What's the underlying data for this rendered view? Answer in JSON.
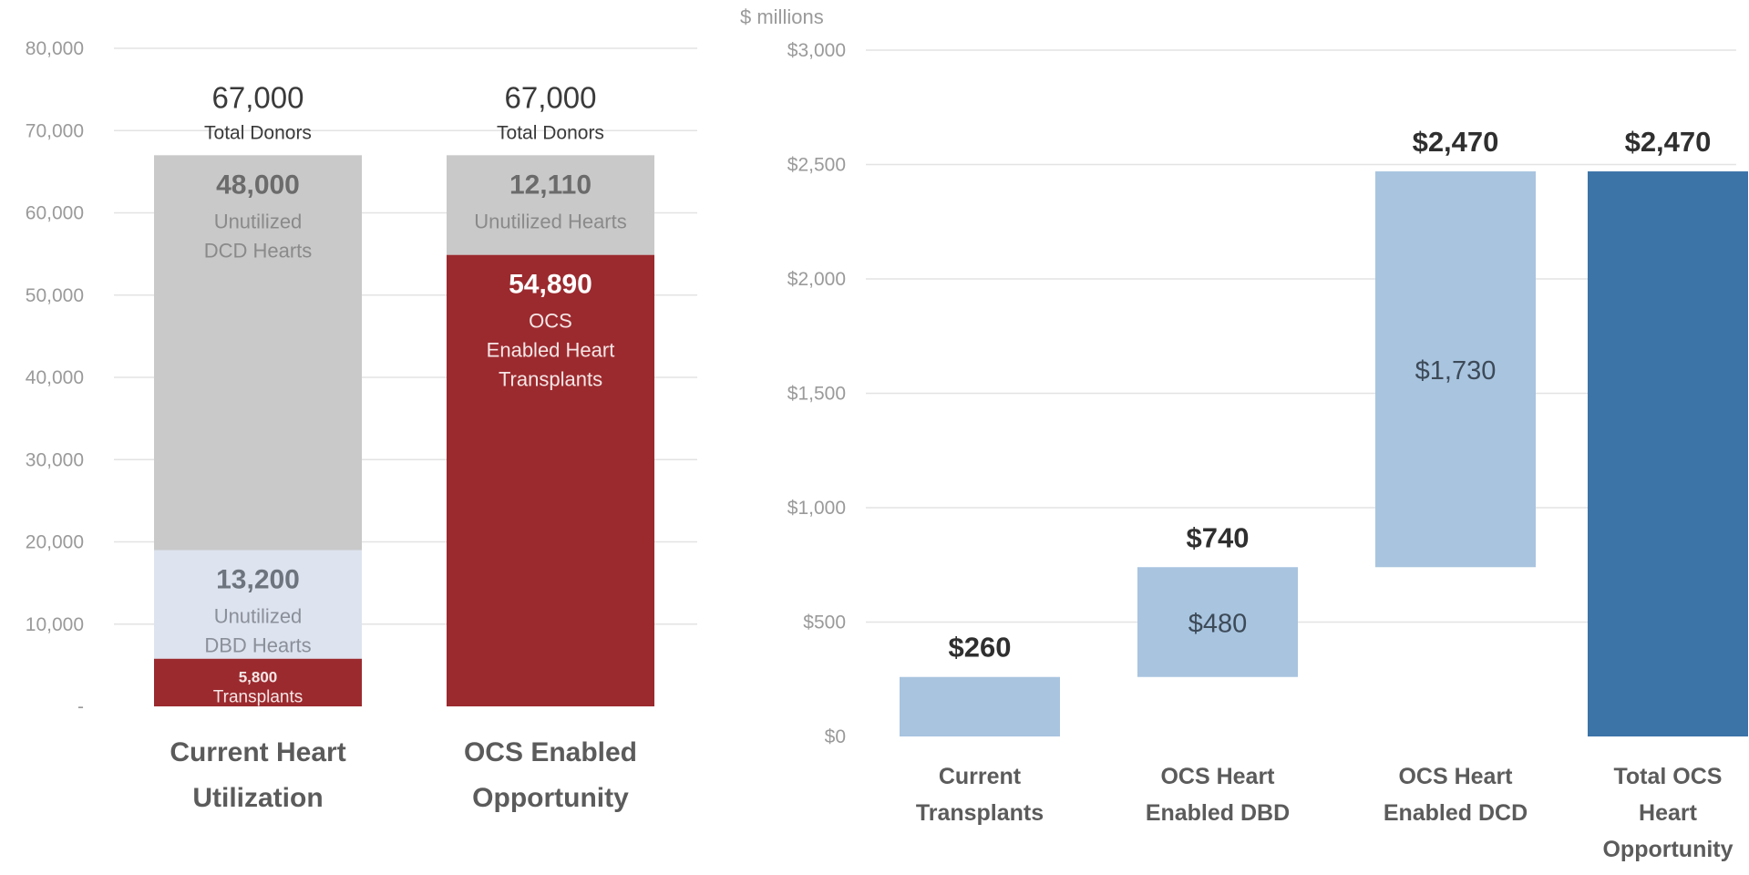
{
  "chart_data": [
    {
      "type": "bar",
      "stacked": true,
      "ylim": [
        0,
        80000
      ],
      "yticks": [
        {
          "value": 0,
          "label": "-"
        },
        {
          "value": 10000,
          "label": "10,000"
        },
        {
          "value": 20000,
          "label": "20,000"
        },
        {
          "value": 30000,
          "label": "30,000"
        },
        {
          "value": 40000,
          "label": "40,000"
        },
        {
          "value": 50000,
          "label": "50,000"
        },
        {
          "value": 60000,
          "label": "60,000"
        },
        {
          "value": 70000,
          "label": "70,000"
        },
        {
          "value": 80000,
          "label": "80,000"
        }
      ],
      "grid": true,
      "categories": [
        {
          "line1": "Current Heart",
          "line2": "Utilization"
        },
        {
          "line1": "OCS Enabled",
          "line2": "Opportunity"
        }
      ],
      "totals": [
        {
          "value_label": "67,000",
          "caption": "Total Donors"
        },
        {
          "value_label": "67,000",
          "caption": "Total Donors"
        }
      ],
      "bars": [
        [
          {
            "value": 5800,
            "color": "#9b2a2e",
            "value_label": "5,800",
            "lines": [
              "Transplants"
            ],
            "text_color": "#f6e6e6",
            "style": "tiny"
          },
          {
            "value": 13200,
            "color": "#dde3ef",
            "value_label": "13,200",
            "lines": [
              "Unutilized",
              "DBD Hearts"
            ],
            "text_color": "#8a8f99",
            "value_color": "#6e747d",
            "style": "normal"
          },
          {
            "value": 48000,
            "color": "#c9c9c9",
            "value_label": "48,000",
            "lines": [
              "Unutilized",
              "DCD Hearts"
            ],
            "text_color": "#8a8a8a",
            "value_color": "#6b6b6b",
            "style": "normal"
          }
        ],
        [
          {
            "value": 54890,
            "color": "#9b2a2e",
            "value_label": "54,890",
            "lines": [
              "OCS",
              "Enabled Heart",
              "Transplants"
            ],
            "text_color": "#f6e6e6",
            "value_color": "#ffffff",
            "style": "normal"
          },
          {
            "value": 12110,
            "color": "#c9c9c9",
            "value_label": "12,110",
            "lines": [
              "Unutilized Hearts"
            ],
            "text_color": "#8a8a8a",
            "value_color": "#6b6b6b",
            "style": "normal"
          }
        ]
      ]
    },
    {
      "type": "bar",
      "subtype": "waterfall",
      "unit_label": "$ millions",
      "ylim": [
        0,
        3000
      ],
      "yticks": [
        {
          "value": 0,
          "label": "$0"
        },
        {
          "value": 500,
          "label": "$500"
        },
        {
          "value": 1000,
          "label": "$1,000"
        },
        {
          "value": 1500,
          "label": "$1,500"
        },
        {
          "value": 2000,
          "label": "$2,000"
        },
        {
          "value": 2500,
          "label": "$2,500"
        },
        {
          "value": 3000,
          "label": "$3,000"
        }
      ],
      "grid": true,
      "categories": [
        [
          "Current",
          "Transplants"
        ],
        [
          "OCS Heart",
          "Enabled DBD"
        ],
        [
          "OCS Heart",
          "Enabled DCD"
        ],
        [
          "Total OCS",
          "Heart",
          "Opportunity"
        ]
      ],
      "bars": [
        {
          "start": 0,
          "end": 260,
          "color": "#a8c4df",
          "top_label": "$260",
          "inner_label": ""
        },
        {
          "start": 260,
          "end": 740,
          "color": "#a8c4df",
          "top_label": "$740",
          "inner_label": "$480"
        },
        {
          "start": 740,
          "end": 2470,
          "color": "#a8c4df",
          "top_label": "$2,470",
          "inner_label": "$1,730"
        },
        {
          "start": 0,
          "end": 2470,
          "color": "#3c74a8",
          "top_label": "$2,470",
          "inner_label": ""
        }
      ]
    }
  ]
}
